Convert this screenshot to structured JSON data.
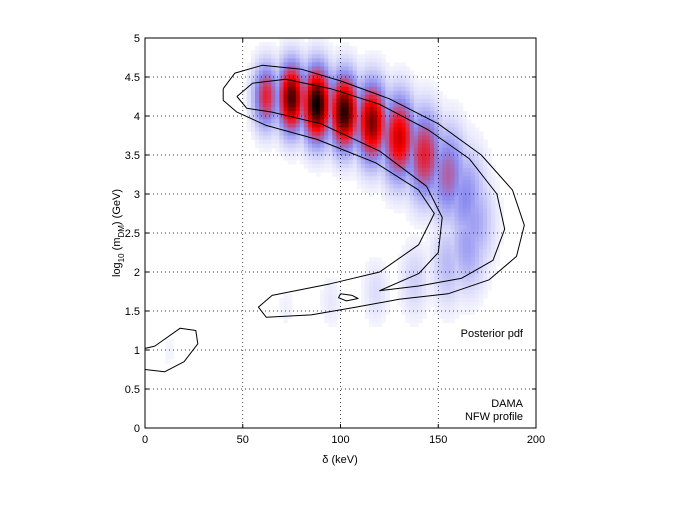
{
  "chart_data": {
    "type": "heatmap",
    "xlabel": "δ (keV)",
    "ylabel_parts": {
      "main": "log",
      "sub1": "10",
      "mid": " (m",
      "sub2": "DM",
      "end": ") (GeV)"
    },
    "xlim": [
      0,
      200
    ],
    "ylim": [
      0,
      5
    ],
    "x_ticks": [
      "0",
      "50",
      "100",
      "150",
      "200"
    ],
    "x_tick_values": [
      0,
      50,
      100,
      150,
      200
    ],
    "y_ticks": [
      "0",
      "0.5",
      "1",
      "1.5",
      "2",
      "2.5",
      "3",
      "3.5",
      "4",
      "4.5",
      "5"
    ],
    "y_tick_values": [
      0,
      0.5,
      1,
      1.5,
      2,
      2.5,
      3,
      3.5,
      4,
      4.5,
      5
    ],
    "grid": "dotted",
    "colormap": {
      "low": "#ffffff",
      "mid": "#8c8cf0",
      "high": "#ff0000",
      "peak": "#000000"
    },
    "annotations": {
      "posterior": "Posterior pdf",
      "experiment": "DAMA",
      "profile": "NFW profile"
    },
    "posterior_peak": {
      "x": 88,
      "y": 4.15
    },
    "density_ridge": [
      {
        "x": 62,
        "y": 4.25,
        "sigma": 0.13,
        "density": 0.55
      },
      {
        "x": 75,
        "y": 4.23,
        "sigma": 0.14,
        "density": 0.9
      },
      {
        "x": 88,
        "y": 4.15,
        "sigma": 0.15,
        "density": 1.0
      },
      {
        "x": 102,
        "y": 4.05,
        "sigma": 0.15,
        "density": 0.95
      },
      {
        "x": 116,
        "y": 3.92,
        "sigma": 0.16,
        "density": 0.82
      },
      {
        "x": 130,
        "y": 3.72,
        "sigma": 0.17,
        "density": 0.7
      },
      {
        "x": 143,
        "y": 3.5,
        "sigma": 0.18,
        "density": 0.55
      },
      {
        "x": 155,
        "y": 3.25,
        "sigma": 0.19,
        "density": 0.4
      },
      {
        "x": 164,
        "y": 2.95,
        "sigma": 0.2,
        "density": 0.3
      },
      {
        "x": 168,
        "y": 2.65,
        "sigma": 0.2,
        "density": 0.25
      },
      {
        "x": 165,
        "y": 2.35,
        "sigma": 0.19,
        "density": 0.25
      },
      {
        "x": 155,
        "y": 2.1,
        "sigma": 0.17,
        "density": 0.18
      },
      {
        "x": 138,
        "y": 1.9,
        "sigma": 0.15,
        "density": 0.12
      },
      {
        "x": 118,
        "y": 1.75,
        "sigma": 0.13,
        "density": 0.09
      },
      {
        "x": 95,
        "y": 1.62,
        "sigma": 0.11,
        "density": 0.06
      },
      {
        "x": 72,
        "y": 1.55,
        "sigma": 0.09,
        "density": 0.04
      },
      {
        "x": 12,
        "y": 1.0,
        "sigma": 0.12,
        "density": 0.03
      }
    ],
    "contours": [
      {
        "name": "outer",
        "points": [
          [
            40,
            4.35
          ],
          [
            46,
            4.55
          ],
          [
            60,
            4.65
          ],
          [
            80,
            4.6
          ],
          [
            100,
            4.45
          ],
          [
            125,
            4.22
          ],
          [
            150,
            3.9
          ],
          [
            172,
            3.5
          ],
          [
            188,
            3.05
          ],
          [
            194,
            2.6
          ],
          [
            190,
            2.2
          ],
          [
            176,
            1.9
          ],
          [
            155,
            1.72
          ],
          [
            130,
            1.65
          ],
          [
            108,
            1.55
          ],
          [
            85,
            1.45
          ],
          [
            62,
            1.42
          ],
          [
            58,
            1.55
          ],
          [
            65,
            1.7
          ],
          [
            95,
            1.85
          ],
          [
            120,
            2.0
          ],
          [
            140,
            2.35
          ],
          [
            148,
            2.75
          ],
          [
            140,
            3.05
          ],
          [
            118,
            3.4
          ],
          [
            88,
            3.7
          ],
          [
            62,
            3.88
          ],
          [
            47,
            4.05
          ],
          [
            40,
            4.2
          ],
          [
            40,
            4.35
          ]
        ]
      },
      {
        "name": "middle",
        "points": [
          [
            47,
            4.25
          ],
          [
            55,
            4.42
          ],
          [
            72,
            4.47
          ],
          [
            95,
            4.35
          ],
          [
            120,
            4.15
          ],
          [
            145,
            3.82
          ],
          [
            166,
            3.45
          ],
          [
            180,
            3.0
          ],
          [
            184,
            2.55
          ],
          [
            178,
            2.15
          ],
          [
            162,
            1.92
          ],
          [
            140,
            1.82
          ],
          [
            120,
            1.76
          ],
          [
            140,
            1.98
          ],
          [
            150,
            2.25
          ],
          [
            152,
            2.7
          ],
          [
            144,
            3.1
          ],
          [
            120,
            3.55
          ],
          [
            90,
            3.9
          ],
          [
            65,
            4.05
          ],
          [
            52,
            4.1
          ],
          [
            47,
            4.25
          ]
        ]
      },
      {
        "name": "small-blob",
        "points": [
          [
            100,
            1.72
          ],
          [
            106,
            1.7
          ],
          [
            109,
            1.66
          ],
          [
            103,
            1.63
          ],
          [
            99,
            1.67
          ],
          [
            100,
            1.72
          ]
        ]
      },
      {
        "name": "corner-blob",
        "points": [
          [
            0,
            0.75
          ],
          [
            10,
            0.72
          ],
          [
            20,
            0.85
          ],
          [
            27,
            1.08
          ],
          [
            26,
            1.25
          ],
          [
            18,
            1.28
          ],
          [
            5,
            1.05
          ],
          [
            0,
            1.02
          ]
        ]
      }
    ]
  }
}
